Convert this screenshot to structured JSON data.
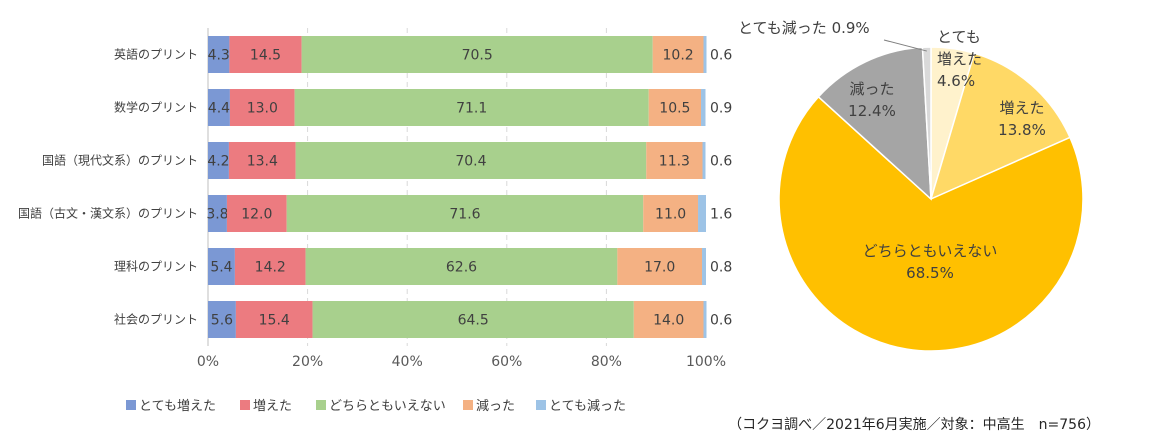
{
  "chart_data": [
    {
      "type": "bar",
      "orientation": "horizontal",
      "stacked": true,
      "percent": true,
      "categories": [
        "英語のプリント",
        "数学のプリント",
        "国語（現代文系）のプリント",
        "国語（古文・漢文系）のプリント",
        "理科のプリント",
        "社会のプリント"
      ],
      "series": [
        {
          "name": "とても増えた",
          "color": "#7b98d4",
          "values": [
            4.3,
            4.4,
            4.2,
            3.8,
            5.4,
            5.6
          ]
        },
        {
          "name": "増えた",
          "color": "#ec7b80",
          "values": [
            14.5,
            13.0,
            13.4,
            12.0,
            14.2,
            15.4
          ]
        },
        {
          "name": "どちらともいえない",
          "color": "#a8d08d",
          "values": [
            70.5,
            71.1,
            70.4,
            71.6,
            62.6,
            64.5
          ]
        },
        {
          "name": "減った",
          "color": "#f4b183",
          "values": [
            10.2,
            10.5,
            11.3,
            11.0,
            17.0,
            14.0
          ]
        },
        {
          "name": "とても減った",
          "color": "#9dc3e6",
          "values": [
            0.6,
            0.9,
            0.6,
            1.6,
            0.8,
            0.6
          ]
        }
      ],
      "xticks": [
        "0%",
        "20%",
        "40%",
        "60%",
        "80%",
        "100%"
      ],
      "xlim": [
        0,
        100
      ],
      "grid": true,
      "legend": "bottom"
    },
    {
      "type": "pie",
      "slices": [
        {
          "name": "とても増えた",
          "line1": "とても",
          "line2": "増えた",
          "value": 4.6,
          "value_label": "4.6%",
          "color": "#fff2cc"
        },
        {
          "name": "増えた",
          "line1": "増えた",
          "line2": "",
          "value": 13.8,
          "value_label": "13.8%",
          "color": "#ffd966"
        },
        {
          "name": "どちらともいえない",
          "line1": "どちらともいえない",
          "line2": "",
          "value": 68.5,
          "value_label": "68.5%",
          "color": "#ffc000"
        },
        {
          "name": "減った",
          "line1": "減った",
          "line2": "",
          "value": 12.4,
          "value_label": "12.4%",
          "color": "#a5a5a5"
        },
        {
          "name": "とても減った",
          "line1": "とても減った",
          "line2": "",
          "value": 0.9,
          "value_label": "0.9%",
          "color": "#d9d9d9"
        }
      ]
    }
  ],
  "source_note": "（コクヨ調べ／2021年6月実施／対象：中高生　n=756）"
}
